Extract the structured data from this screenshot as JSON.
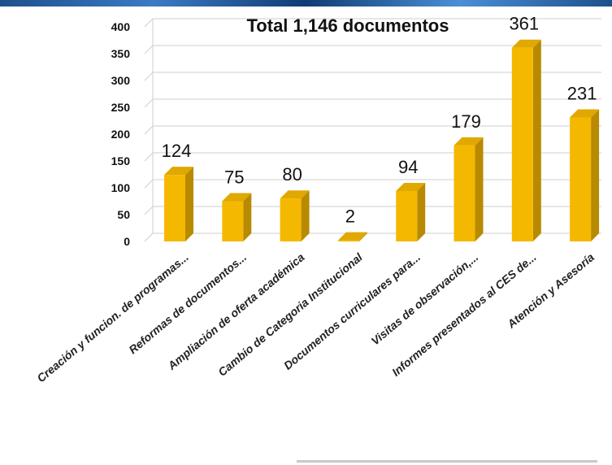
{
  "chart_data": {
    "type": "bar",
    "title": "Total 1,146 documentos",
    "categories": [
      "Creación y funcion. de programas...",
      "Reformas de documentos...",
      "Ampliación de oferta académica",
      "Cambio de Categoria Institucional",
      "Documentos curriculares para...",
      "Visitas de observación,...",
      "Informes presentados al CES de...",
      "Atención y Asesoría"
    ],
    "values": [
      124,
      75,
      80,
      2,
      94,
      179,
      361,
      231
    ],
    "ylim": [
      0,
      400
    ],
    "yticks": [
      0,
      50,
      100,
      150,
      200,
      250,
      300,
      350,
      400
    ],
    "grid": true,
    "legend": "none",
    "colors": {
      "bar_front": "#f5b800",
      "bar_side": "#b88a00",
      "bar_top": "#e0a800",
      "grid": "#cfcfcf"
    }
  }
}
